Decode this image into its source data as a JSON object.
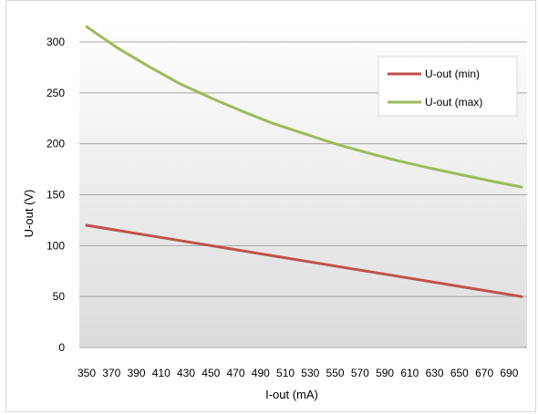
{
  "chart_data": {
    "type": "line",
    "xlabel": "I-out (mA)",
    "ylabel": "U-out (V)",
    "xlim": [
      350,
      700
    ],
    "ylim": [
      0,
      320
    ],
    "x_ticks": [
      350,
      370,
      390,
      410,
      430,
      450,
      470,
      490,
      510,
      530,
      550,
      570,
      590,
      610,
      630,
      650,
      670,
      690
    ],
    "y_ticks": [
      0,
      50,
      100,
      150,
      200,
      250,
      300
    ],
    "grid": "horizontal",
    "legend_position": "top-right",
    "series": [
      {
        "name": "U-out (min)",
        "color": "#c0504d",
        "x": [
          350,
          400,
          450,
          500,
          550,
          600,
          650,
          700
        ],
        "y": [
          120,
          110,
          100,
          90,
          80,
          70,
          60,
          50
        ]
      },
      {
        "name": "U-out (max)",
        "color": "#9bbb59",
        "x": [
          350,
          375,
          400,
          425,
          450,
          475,
          500,
          525,
          550,
          575,
          600,
          625,
          650,
          675,
          700
        ],
        "y": [
          315,
          294,
          276,
          259,
          245,
          232,
          220,
          210,
          200,
          191.5,
          183.5,
          176.5,
          170,
          163.5,
          157.5
        ]
      }
    ]
  }
}
